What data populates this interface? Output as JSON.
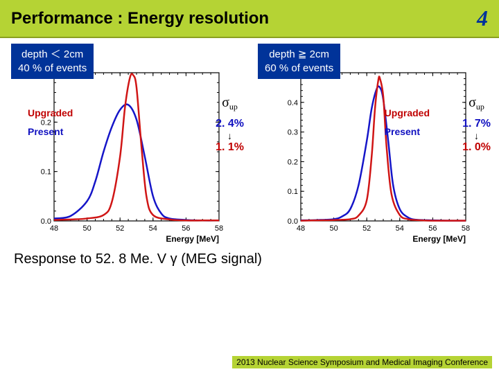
{
  "header": {
    "title": "Performance : Energy resolution",
    "page_number": "4",
    "bg_color": "#b5d334",
    "title_fontsize": 24,
    "page_color": "#003399"
  },
  "panels": [
    {
      "badge_line1": "depth ＜ 2cm",
      "badge_line2": "40 % of events",
      "badge_bg": "#003399",
      "legend": {
        "upgraded": "Upgraded",
        "present": "Present"
      },
      "sigma": {
        "symbol": "σ",
        "sub": "up",
        "val1": "2. 4%",
        "arrow": "↓",
        "val2": "1. 1%"
      },
      "chart": {
        "type": "line",
        "xlabel": "Energy [MeV]",
        "xlim": [
          48,
          58
        ],
        "xtick_step": 2,
        "ylim": [
          0,
          0.3
        ],
        "ytick_step": 0.1,
        "background": "#ffffff",
        "axis_color": "#000000",
        "curves": [
          {
            "name": "Present",
            "color": "#1515c8",
            "line_width": 2.5,
            "points": [
              [
                48,
                0.005
              ],
              [
                49,
                0.01
              ],
              [
                50,
                0.04
              ],
              [
                50.5,
                0.08
              ],
              [
                51,
                0.14
              ],
              [
                51.5,
                0.19
              ],
              [
                52,
                0.225
              ],
              [
                52.5,
                0.235
              ],
              [
                53,
                0.205
              ],
              [
                53.5,
                0.13
              ],
              [
                54,
                0.05
              ],
              [
                54.5,
                0.015
              ],
              [
                55,
                0.005
              ],
              [
                56,
                0.002
              ],
              [
                57,
                0.001
              ],
              [
                58,
                0.001
              ]
            ]
          },
          {
            "name": "Upgraded",
            "color": "#d01515",
            "line_width": 2.5,
            "points": [
              [
                48,
                0.002
              ],
              [
                49,
                0.003
              ],
              [
                50,
                0.005
              ],
              [
                51,
                0.012
              ],
              [
                51.5,
                0.038
              ],
              [
                52,
                0.13
              ],
              [
                52.3,
                0.23
              ],
              [
                52.6,
                0.29
              ],
              [
                52.8,
                0.295
              ],
              [
                53,
                0.27
              ],
              [
                53.3,
                0.15
              ],
              [
                53.6,
                0.05
              ],
              [
                54,
                0.012
              ],
              [
                55,
                0.003
              ],
              [
                56,
                0.001
              ],
              [
                57,
                0.001
              ],
              [
                58,
                0.001
              ]
            ]
          }
        ]
      }
    },
    {
      "badge_line1": "depth ≧ 2cm",
      "badge_line2": "60 % of events",
      "badge_bg": "#003399",
      "legend": {
        "upgraded": "Upgraded",
        "present": "Present"
      },
      "sigma": {
        "symbol": "σ",
        "sub": "up",
        "val1": "1. 7%",
        "arrow": "↓",
        "val2": "1. 0%"
      },
      "chart": {
        "type": "line",
        "xlabel": "Energy [MeV]",
        "xlim": [
          48,
          58
        ],
        "xtick_step": 2,
        "ylim": [
          0,
          0.5
        ],
        "ytick_step": 0.1,
        "background": "#ffffff",
        "axis_color": "#000000",
        "curves": [
          {
            "name": "Present",
            "color": "#1515c8",
            "line_width": 2.5,
            "points": [
              [
                48,
                0.002
              ],
              [
                49,
                0.003
              ],
              [
                50,
                0.006
              ],
              [
                50.5,
                0.015
              ],
              [
                51,
                0.04
              ],
              [
                51.5,
                0.12
              ],
              [
                52,
                0.27
              ],
              [
                52.3,
                0.38
              ],
              [
                52.6,
                0.445
              ],
              [
                52.8,
                0.45
              ],
              [
                53,
                0.41
              ],
              [
                53.3,
                0.27
              ],
              [
                53.6,
                0.12
              ],
              [
                54,
                0.04
              ],
              [
                54.5,
                0.012
              ],
              [
                55,
                0.004
              ],
              [
                56,
                0.002
              ],
              [
                57,
                0.001
              ],
              [
                58,
                0.001
              ]
            ]
          },
          {
            "name": "Upgraded",
            "color": "#d01515",
            "line_width": 2.5,
            "points": [
              [
                48,
                0.001
              ],
              [
                49,
                0.002
              ],
              [
                50,
                0.003
              ],
              [
                51,
                0.006
              ],
              [
                51.5,
                0.018
              ],
              [
                52,
                0.07
              ],
              [
                52.3,
                0.22
              ],
              [
                52.5,
                0.38
              ],
              [
                52.7,
                0.475
              ],
              [
                52.8,
                0.48
              ],
              [
                53,
                0.42
              ],
              [
                53.2,
                0.25
              ],
              [
                53.5,
                0.09
              ],
              [
                54,
                0.02
              ],
              [
                54.5,
                0.006
              ],
              [
                55,
                0.003
              ],
              [
                56,
                0.001
              ],
              [
                57,
                0.001
              ],
              [
                58,
                0.001
              ]
            ]
          }
        ]
      }
    }
  ],
  "caption": "Response to 52. 8 Me. V γ (MEG signal)",
  "footer": "2013 Nuclear Science Symposium and Medical Imaging Conference"
}
